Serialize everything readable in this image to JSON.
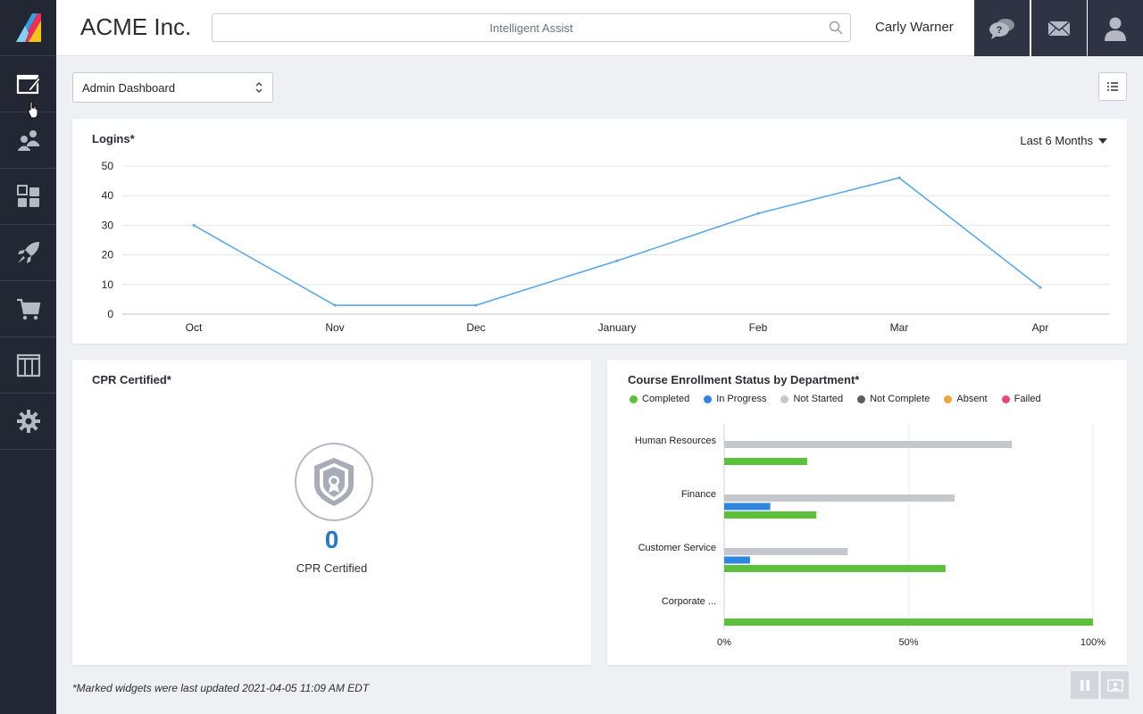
{
  "header": {
    "company_name": "ACME Inc.",
    "search_placeholder": "Intelligent Assist",
    "user_name": "Carly Warner",
    "buttons": [
      "help-chat-icon",
      "mail-icon",
      "user-profile-icon"
    ]
  },
  "sidebar": {
    "items": [
      {
        "icon": "edit-window-icon",
        "active": true
      },
      {
        "icon": "users-icon"
      },
      {
        "icon": "widgets-icon"
      },
      {
        "icon": "rocket-icon"
      },
      {
        "icon": "shopping-cart-icon"
      },
      {
        "icon": "columns-icon"
      },
      {
        "icon": "gear-icon"
      }
    ]
  },
  "dashboard_select": {
    "selected": "Admin Dashboard"
  },
  "logins_widget": {
    "title": "Logins*",
    "range": "Last 6 Months"
  },
  "cpr_widget": {
    "title": "CPR Certified*",
    "count": "0",
    "label": "CPR Certified"
  },
  "enrollment_widget": {
    "title": "Course Enrollment Status by Department*",
    "legend": [
      {
        "name": "Completed",
        "color": "#5cc13a"
      },
      {
        "name": "In Progress",
        "color": "#2f86e0"
      },
      {
        "name": "Not Started",
        "color": "#c5c7cf"
      },
      {
        "name": "Not Complete",
        "color": "#5b5e66"
      },
      {
        "name": "Absent",
        "color": "#f0a53a"
      },
      {
        "name": "Failed",
        "color": "#e84a6a"
      }
    ]
  },
  "footer": {
    "note": "*Marked widgets were last updated 2021-04-05 11:09 AM EDT"
  },
  "chart_data": [
    {
      "type": "line",
      "title": "Logins*",
      "categories": [
        "Oct",
        "Nov",
        "Dec",
        "January",
        "Feb",
        "Mar",
        "Apr"
      ],
      "series": [
        {
          "values": [
            30,
            3,
            3,
            18,
            34,
            46,
            9
          ],
          "color": "#5aa8ea"
        }
      ],
      "ylim": [
        0,
        50
      ],
      "yticks": [
        0,
        10,
        20,
        30,
        40,
        50
      ],
      "grid": true
    },
    {
      "type": "bar",
      "orientation": "horizontal",
      "title": "Course Enrollment Status by Department*",
      "categories": [
        "Human Resources",
        "Finance",
        "Customer Service",
        "Corporate ..."
      ],
      "series": [
        {
          "name": "Not Started",
          "color": "#c5c7cf",
          "values": [
            78,
            62.5,
            33.5,
            0
          ]
        },
        {
          "name": "In Progress",
          "color": "#2f86e0",
          "values": [
            0,
            12.5,
            7,
            0
          ]
        },
        {
          "name": "Completed",
          "color": "#5cc13a",
          "values": [
            22.5,
            25,
            60,
            100
          ]
        }
      ],
      "xlim": [
        0,
        100
      ],
      "xticks": [
        "0%",
        "50%",
        "100%"
      ],
      "grid": true
    }
  ]
}
